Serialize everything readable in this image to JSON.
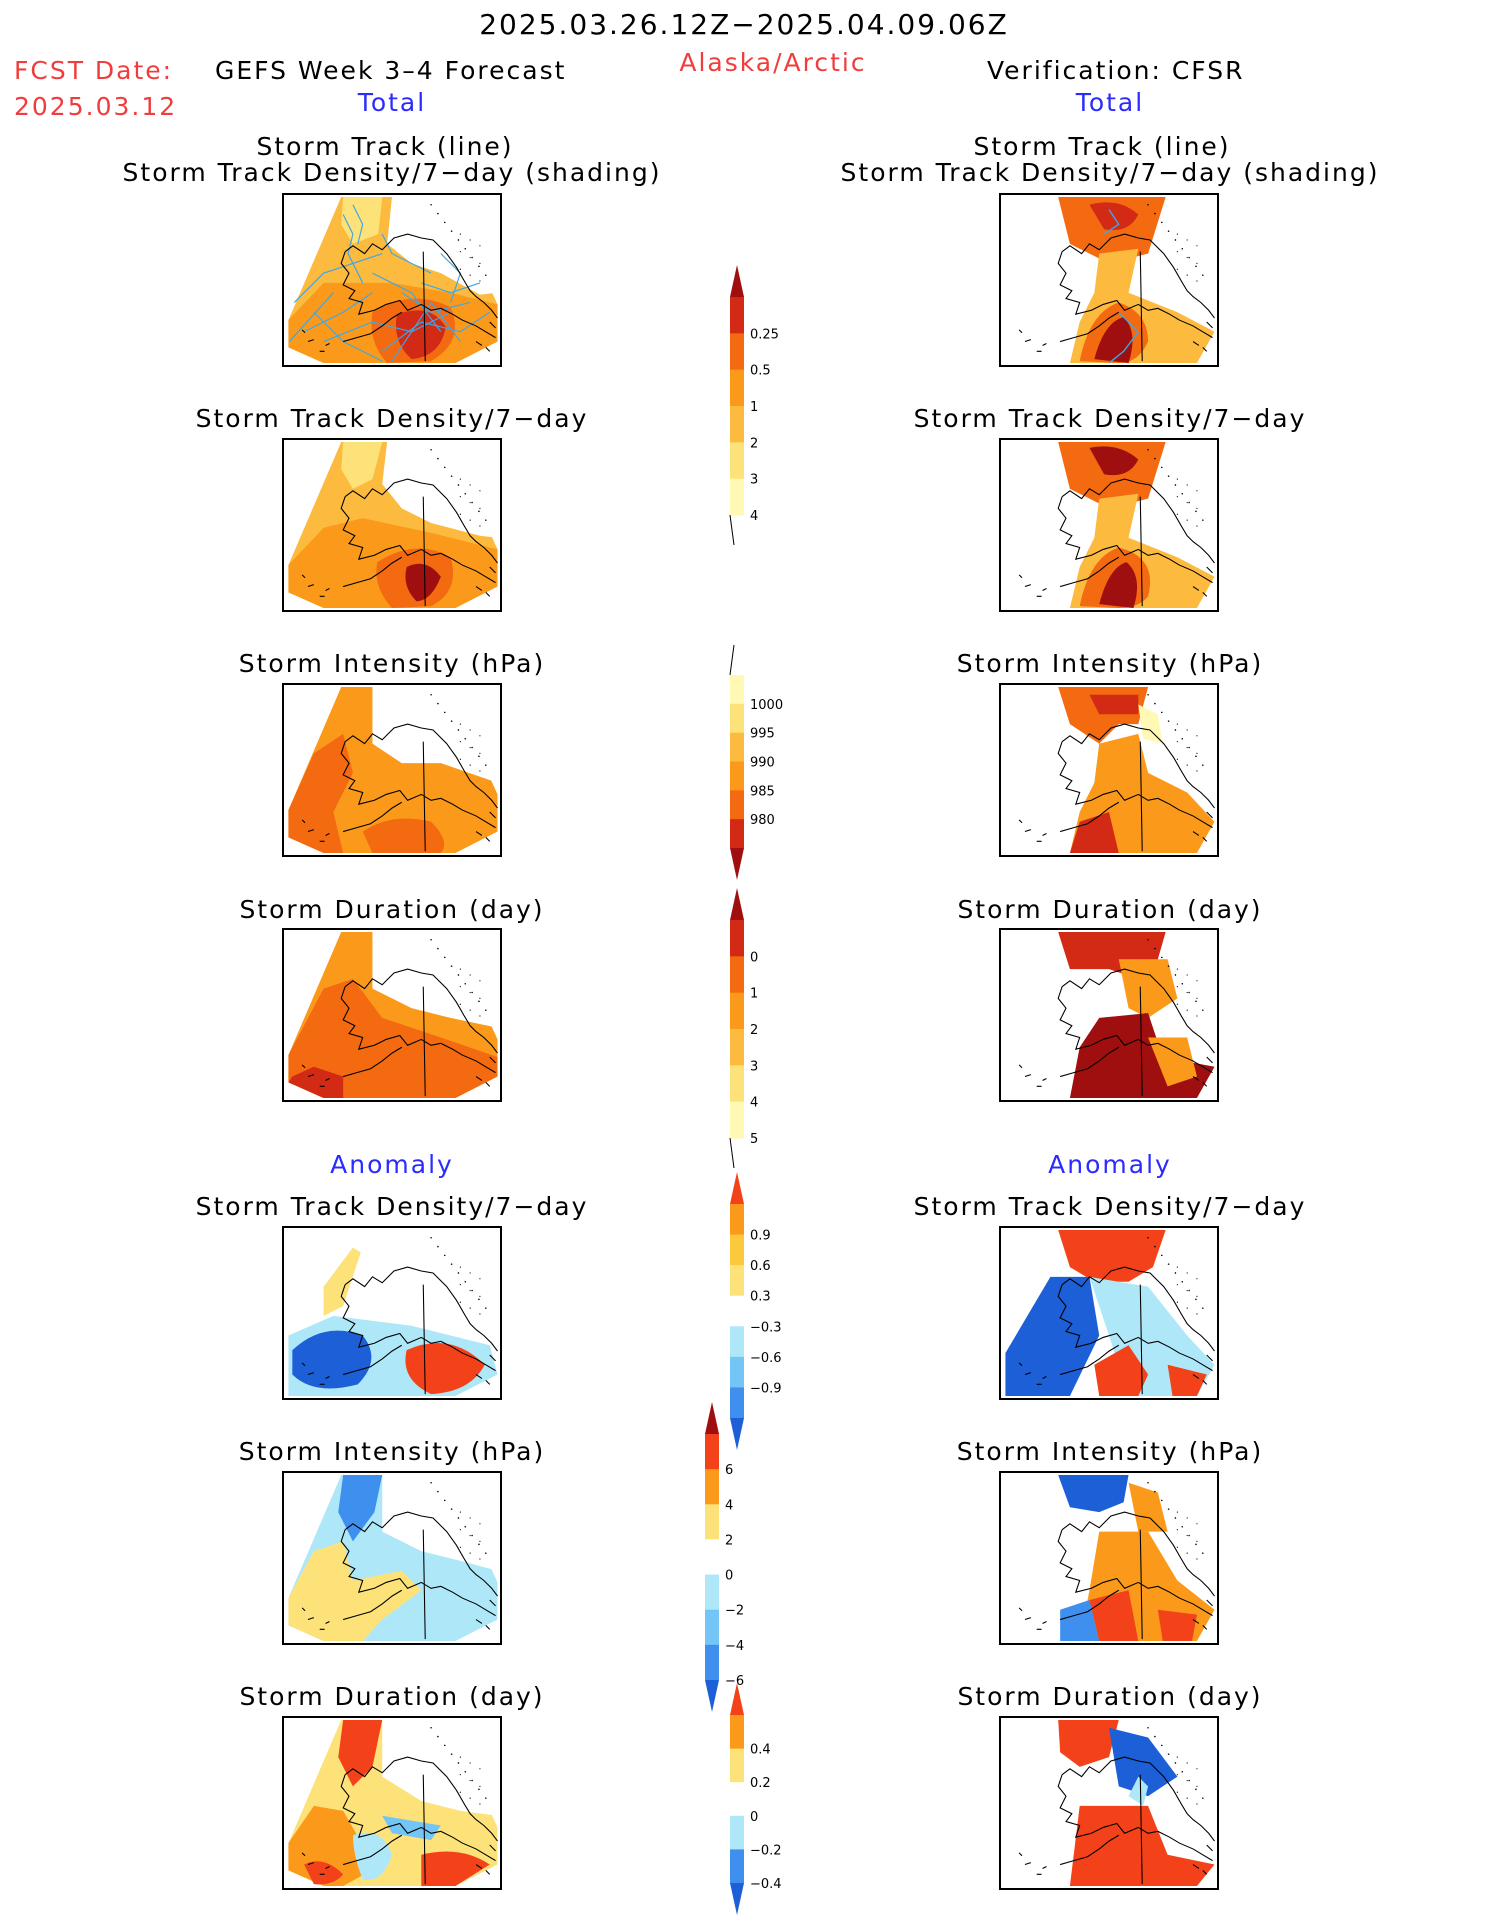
{
  "header": {
    "date_range": "2025.03.26.12Z−2025.04.09.06Z",
    "fcst_label": "FCST Date:",
    "fcst_date": "2025.03.12",
    "left_title": "GEFS Week 3–4 Forecast",
    "region": "Alaska/Arctic",
    "right_title": "Verification: CFSR",
    "total_label": "Total",
    "anomaly_label": "Anomaly"
  },
  "panel_titles": {
    "track_line": "Storm Track (line)",
    "track_shading": "Storm Track Density/7−day (shading)",
    "density": "Storm Track Density/7−day",
    "intensity": "Storm Intensity (hPa)",
    "duration": "Storm Duration (day)"
  },
  "colorbars": {
    "density": {
      "ticks": [
        "0.25",
        "0.5",
        "1",
        "2",
        "3",
        "4"
      ],
      "colors": [
        "#fff9b5",
        "#fde27a",
        "#fcba3f",
        "#fb9a1a",
        "#f36a10",
        "#d22a15",
        "#a00f0f"
      ]
    },
    "intensity": {
      "ticks": [
        "1000",
        "995",
        "990",
        "985",
        "980"
      ],
      "colors": [
        "#fff9b5",
        "#fde27a",
        "#fcba3f",
        "#fb9a1a",
        "#f36a10",
        "#d22a15",
        "#a00f0f"
      ]
    },
    "duration": {
      "ticks": [
        "0",
        "1",
        "2",
        "3",
        "4",
        "5"
      ],
      "colors": [
        "#fff9b5",
        "#fde27a",
        "#fcba3f",
        "#fb9a1a",
        "#f36a10",
        "#d22a15",
        "#a00f0f"
      ]
    },
    "anom_density": {
      "ticks": [
        "0.9",
        "0.6",
        "0.3",
        "−0.3",
        "−0.6",
        "−0.9"
      ],
      "colors": [
        "#f3421a",
        "#fb9a1a",
        "#fcc93c",
        "#fde27a",
        "#ffffff",
        "#aee8f8",
        "#72c5f5",
        "#3e8fee",
        "#1c5fd6"
      ]
    },
    "anom_intensity": {
      "ticks": [
        "6",
        "4",
        "2",
        "0",
        "−2",
        "−4",
        "−6"
      ],
      "colors": [
        "#a00f0f",
        "#f3421a",
        "#fb9a1a",
        "#fde27a",
        "#ffffff",
        "#aee8f8",
        "#72c5f5",
        "#3e8fee",
        "#1c5fd6"
      ]
    },
    "anom_duration": {
      "ticks": [
        "0.4",
        "0.2",
        "0",
        "−0.2",
        "−0.4"
      ],
      "colors": [
        "#f3421a",
        "#fb9a1a",
        "#fde27a",
        "#ffffff",
        "#aee8f8",
        "#3e8fee",
        "#1c5fd6"
      ]
    }
  },
  "colors": {
    "red_text": "#f03c3c",
    "blue_text": "#2b2bff",
    "track_line": "#3fa7e6"
  }
}
